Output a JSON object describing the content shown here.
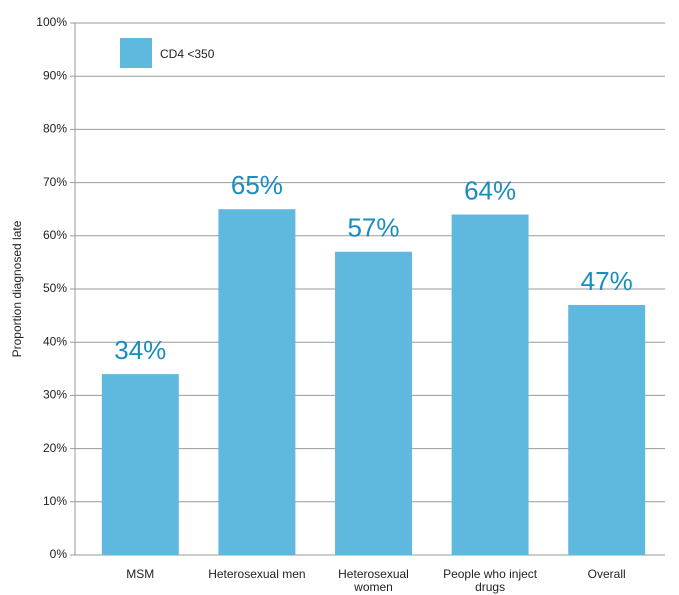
{
  "chart_data": {
    "type": "bar",
    "y_label": "Proportion diagnosed late",
    "categories": [
      "MSM",
      "Heterosexual men",
      "Heterosexual women",
      "People who inject drugs",
      "Overall"
    ],
    "series": [
      {
        "name": "CD4 <350",
        "color": "#5fb8de",
        "values": [
          34,
          65,
          57,
          64,
          47
        ],
        "value_labels": [
          "34%",
          "65%",
          "57%",
          "64%",
          "47%"
        ],
        "value_label_color": "#1a8dc0"
      }
    ],
    "ylim": [
      0,
      100
    ],
    "yticks": [
      {
        "value": 0,
        "label": "0%"
      },
      {
        "value": 10,
        "label": "10%"
      },
      {
        "value": 20,
        "label": "20%"
      },
      {
        "value": 30,
        "label": "30%"
      },
      {
        "value": 40,
        "label": "40%"
      },
      {
        "value": 50,
        "label": "50%"
      },
      {
        "value": 60,
        "label": "60%"
      },
      {
        "value": 70,
        "label": "70%"
      },
      {
        "value": 80,
        "label": "80%"
      },
      {
        "value": 90,
        "label": "90%"
      },
      {
        "value": 100,
        "label": "100%"
      }
    ],
    "grid": true,
    "legend": "top-left"
  }
}
